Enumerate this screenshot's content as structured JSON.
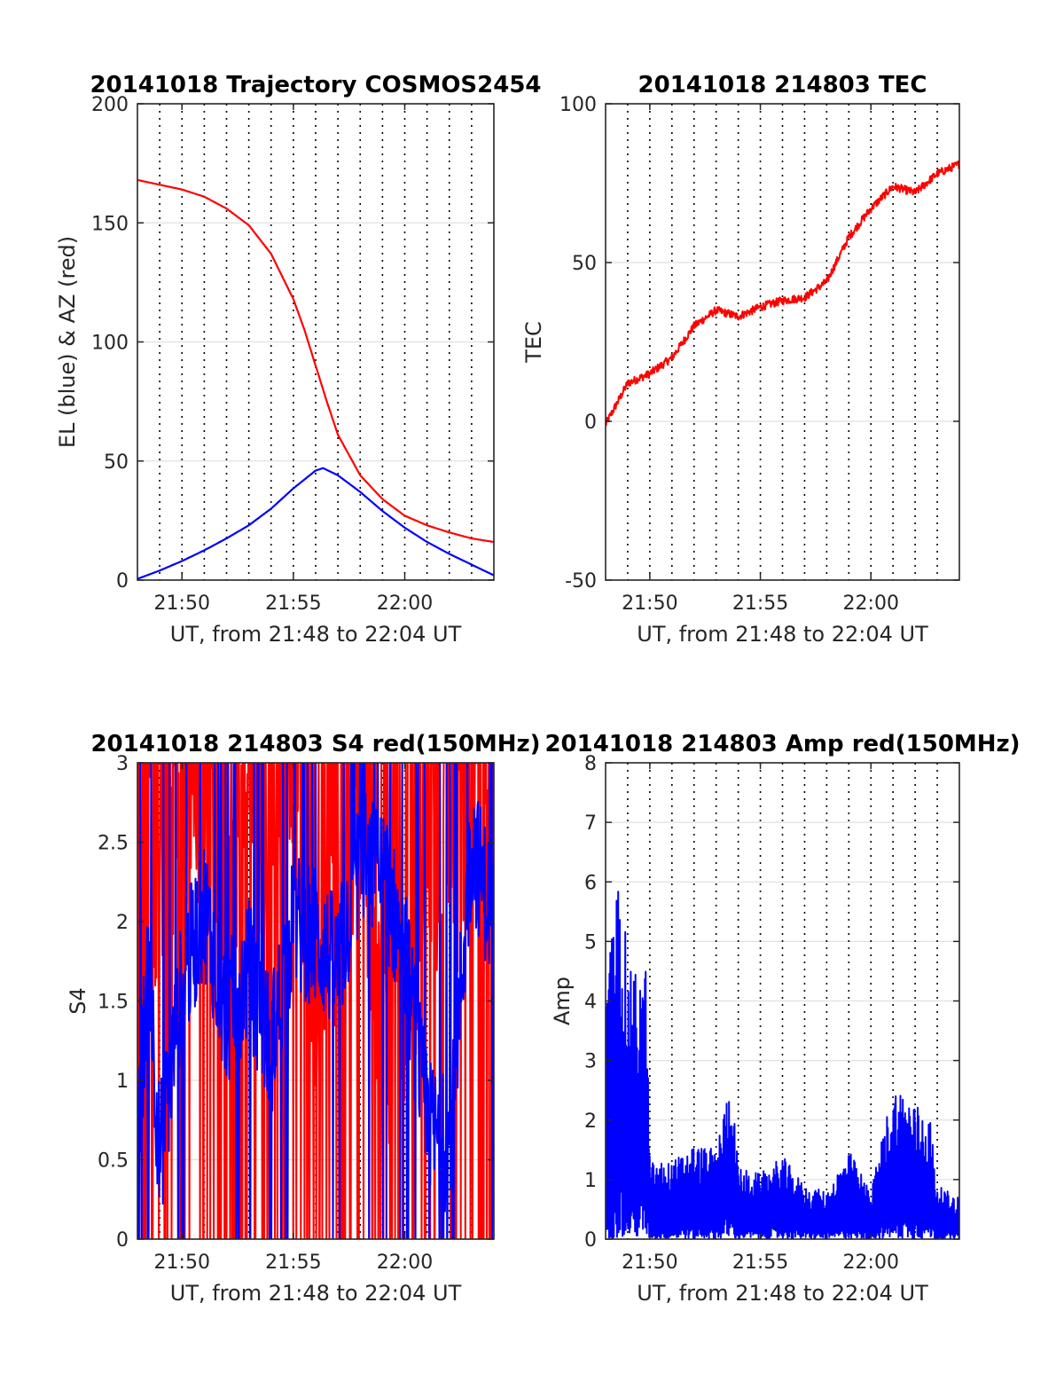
{
  "figure": {
    "background": "#ffffff"
  },
  "chart_data": [
    {
      "id": "traj",
      "type": "line",
      "title": "20141018 Trajectory COSMOS2454",
      "xlabel": "UT, from 21:48 to 22:04 UT",
      "ylabel": "EL (blue) & AZ (red)",
      "xlim": [
        "21:48",
        "22:04"
      ],
      "ylim": [
        0,
        200
      ],
      "xticks": [
        "21:50",
        "21:55",
        "22:00"
      ],
      "yticks": [
        0,
        50,
        100,
        150,
        200
      ],
      "grid": "horizontal gridlines; vertical dotted lines every minute",
      "series": [
        {
          "color": "#ff0000",
          "x": [
            "21:48",
            "21:49",
            "21:50",
            "21:51",
            "21:52",
            "21:53",
            "21:54",
            "21:55",
            "21:55:30",
            "21:56",
            "21:56:30",
            "21:57",
            "21:58",
            "21:59",
            "22:00",
            "22:01",
            "22:02",
            "22:03",
            "22:04"
          ],
          "values": [
            168,
            166,
            164,
            161,
            156,
            149,
            137,
            118,
            105,
            90,
            75,
            61,
            44,
            34,
            27,
            23,
            20,
            17.5,
            16
          ]
        },
        {
          "color": "#0000ff",
          "x": [
            "21:48",
            "21:49",
            "21:50",
            "21:51",
            "21:52",
            "21:53",
            "21:54",
            "21:55",
            "21:56",
            "21:56:20",
            "21:57",
            "21:58",
            "21:59",
            "22:00",
            "22:01",
            "22:02",
            "22:03",
            "22:04"
          ],
          "values": [
            0.5,
            4,
            8,
            12.5,
            17.5,
            23,
            30,
            38.5,
            46,
            47,
            44,
            37,
            29,
            22,
            16,
            11,
            6.5,
            2
          ]
        }
      ]
    },
    {
      "id": "tec",
      "type": "line",
      "title": "20141018 214803 TEC",
      "xlabel": "UT, from 21:48 to 22:04 UT",
      "ylabel": "TEC",
      "xlim": [
        "21:48",
        "22:04"
      ],
      "ylim": [
        -50,
        100
      ],
      "xticks": [
        "21:50",
        "21:55",
        "22:00"
      ],
      "yticks": [
        -50,
        0,
        50,
        100
      ],
      "grid": "horizontal gridlines; vertical dotted lines every minute",
      "series": [
        {
          "color": "#ff0000",
          "x": [
            "21:48",
            "21:49",
            "21:50",
            "21:51",
            "21:52",
            "21:53",
            "21:54",
            "21:55",
            "21:56",
            "21:57",
            "21:58",
            "21:59",
            "22:00",
            "22:01",
            "22:02",
            "22:03",
            "22:04"
          ],
          "values": [
            -1,
            12,
            15,
            20,
            30,
            35,
            33,
            36,
            38,
            39,
            44,
            58,
            67,
            74,
            72,
            78,
            81
          ]
        }
      ]
    },
    {
      "id": "s4",
      "type": "line",
      "title": "20141018 214803 S4 red(150MHz)",
      "xlabel": "UT, from 21:48 to 22:04 UT",
      "ylabel": "S4",
      "xlim": [
        "21:48",
        "22:04"
      ],
      "ylim": [
        0,
        3
      ],
      "xticks": [
        "21:50",
        "21:55",
        "22:00"
      ],
      "yticks": [
        0,
        0.5,
        1,
        1.5,
        2,
        2.5,
        3
      ],
      "grid": "horizontal gridlines; vertical dotted lines every minute",
      "series": [
        {
          "color": "#ff0000",
          "x": [
            "21:48",
            "21:49",
            "21:50",
            "21:51",
            "21:52",
            "21:53",
            "21:54",
            "21:55",
            "21:56",
            "21:57",
            "21:58",
            "21:59",
            "22:00",
            "22:01",
            "22:02",
            "22:03",
            "22:04"
          ],
          "values": [
            2.6,
            2.2,
            2.5,
            2.7,
            2.3,
            2.8,
            2.4,
            2.9,
            1.6,
            2.1,
            2.7,
            1.3,
            1.2,
            2.5,
            1.9,
            2.8,
            2.2
          ]
        },
        {
          "color": "#0000ff",
          "x": [
            "21:48",
            "21:48:30",
            "21:49",
            "21:50",
            "21:51",
            "21:52",
            "21:53",
            "21:54",
            "21:55",
            "21:56",
            "21:57",
            "21:58",
            "21:59",
            "22:00",
            "22:01",
            "22:02",
            "22:03",
            "22:04"
          ],
          "values": [
            0.6,
            1.8,
            0.5,
            1.6,
            2.1,
            1.4,
            1.7,
            1.2,
            2.0,
            1.9,
            1.7,
            2.4,
            2.3,
            1.8,
            0.7,
            0.6,
            2.5,
            2.0
          ]
        }
      ]
    },
    {
      "id": "amp",
      "type": "line",
      "title": "20141018 214803 Amp red(150MHz)",
      "xlabel": "UT, from 21:48 to 22:04 UT",
      "ylabel": "Amp",
      "xlim": [
        "21:48",
        "22:04"
      ],
      "ylim": [
        0,
        8
      ],
      "xticks": [
        "21:50",
        "21:55",
        "22:00"
      ],
      "yticks": [
        0,
        1,
        2,
        3,
        4,
        5,
        6,
        7,
        8
      ],
      "grid": "horizontal gridlines; vertical dotted lines every minute",
      "series": [
        {
          "color": "#0000ff",
          "x": [
            "21:48",
            "21:48:40",
            "21:49",
            "21:49:50",
            "21:50",
            "21:51",
            "21:52",
            "21:53",
            "21:53:40",
            "21:54",
            "21:55",
            "21:56",
            "21:57",
            "21:58",
            "21:59",
            "22:00",
            "22:01",
            "22:01:30",
            "22:02",
            "22:02:40",
            "22:03",
            "22:04"
          ],
          "values": [
            4.2,
            6.5,
            4.5,
            4.6,
            1.3,
            1.3,
            1.6,
            1.5,
            2.8,
            1.2,
            1.1,
            1.4,
            0.9,
            0.8,
            1.5,
            0.8,
            2.6,
            2.5,
            2.3,
            2.1,
            0.9,
            0.7
          ]
        }
      ]
    }
  ]
}
